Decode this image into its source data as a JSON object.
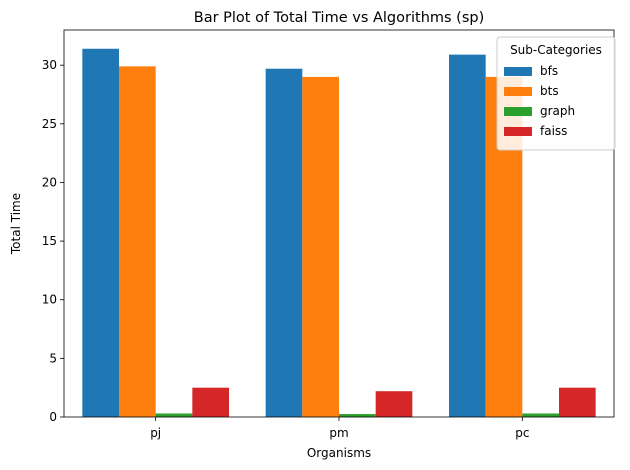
{
  "chart_data": {
    "type": "bar",
    "title": "Bar Plot of Total Time vs Algorithms (sp)",
    "xlabel": "Organisms",
    "ylabel": "Total Time",
    "categories": [
      "pj",
      "pm",
      "pc"
    ],
    "ylim": [
      0,
      33
    ],
    "yticks": [
      0,
      5,
      10,
      15,
      20,
      25,
      30
    ],
    "legend": {
      "title": "Sub-Categories",
      "position": "top-right"
    },
    "grid": false,
    "series": [
      {
        "name": "bfs",
        "color": "#1f77b4",
        "values": [
          31.4,
          29.7,
          30.9
        ]
      },
      {
        "name": "bts",
        "color": "#ff7f0e",
        "values": [
          29.9,
          29.0,
          29.0
        ]
      },
      {
        "name": "graph",
        "color": "#2ca02c",
        "values": [
          0.3,
          0.25,
          0.3
        ]
      },
      {
        "name": "faiss",
        "color": "#d62728",
        "values": [
          2.5,
          2.2,
          2.5
        ]
      }
    ]
  }
}
